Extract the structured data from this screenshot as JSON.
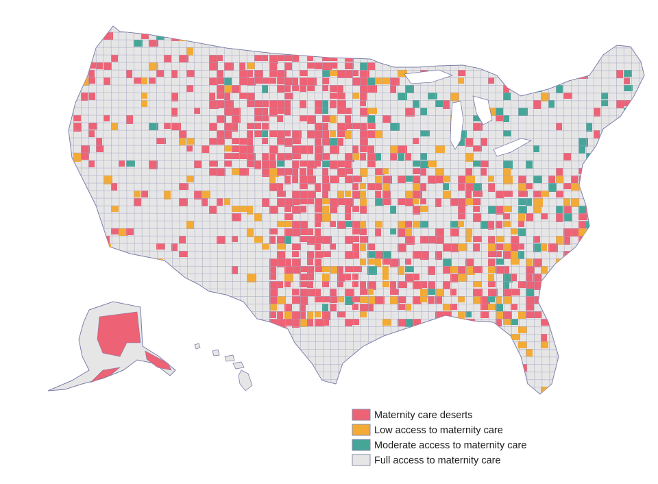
{
  "map": {
    "categories": [
      {
        "key": "desert",
        "label": "Maternity care deserts",
        "color": "#ed6275"
      },
      {
        "key": "low",
        "label": "Low access to maternity care",
        "color": "#f4ab35"
      },
      {
        "key": "moderate",
        "label": "Moderate access to maternity care",
        "color": "#45a698"
      },
      {
        "key": "full",
        "label": "Full access to maternity care",
        "color": "#e6e6e6"
      }
    ],
    "border_color": "#7b7ca8"
  }
}
